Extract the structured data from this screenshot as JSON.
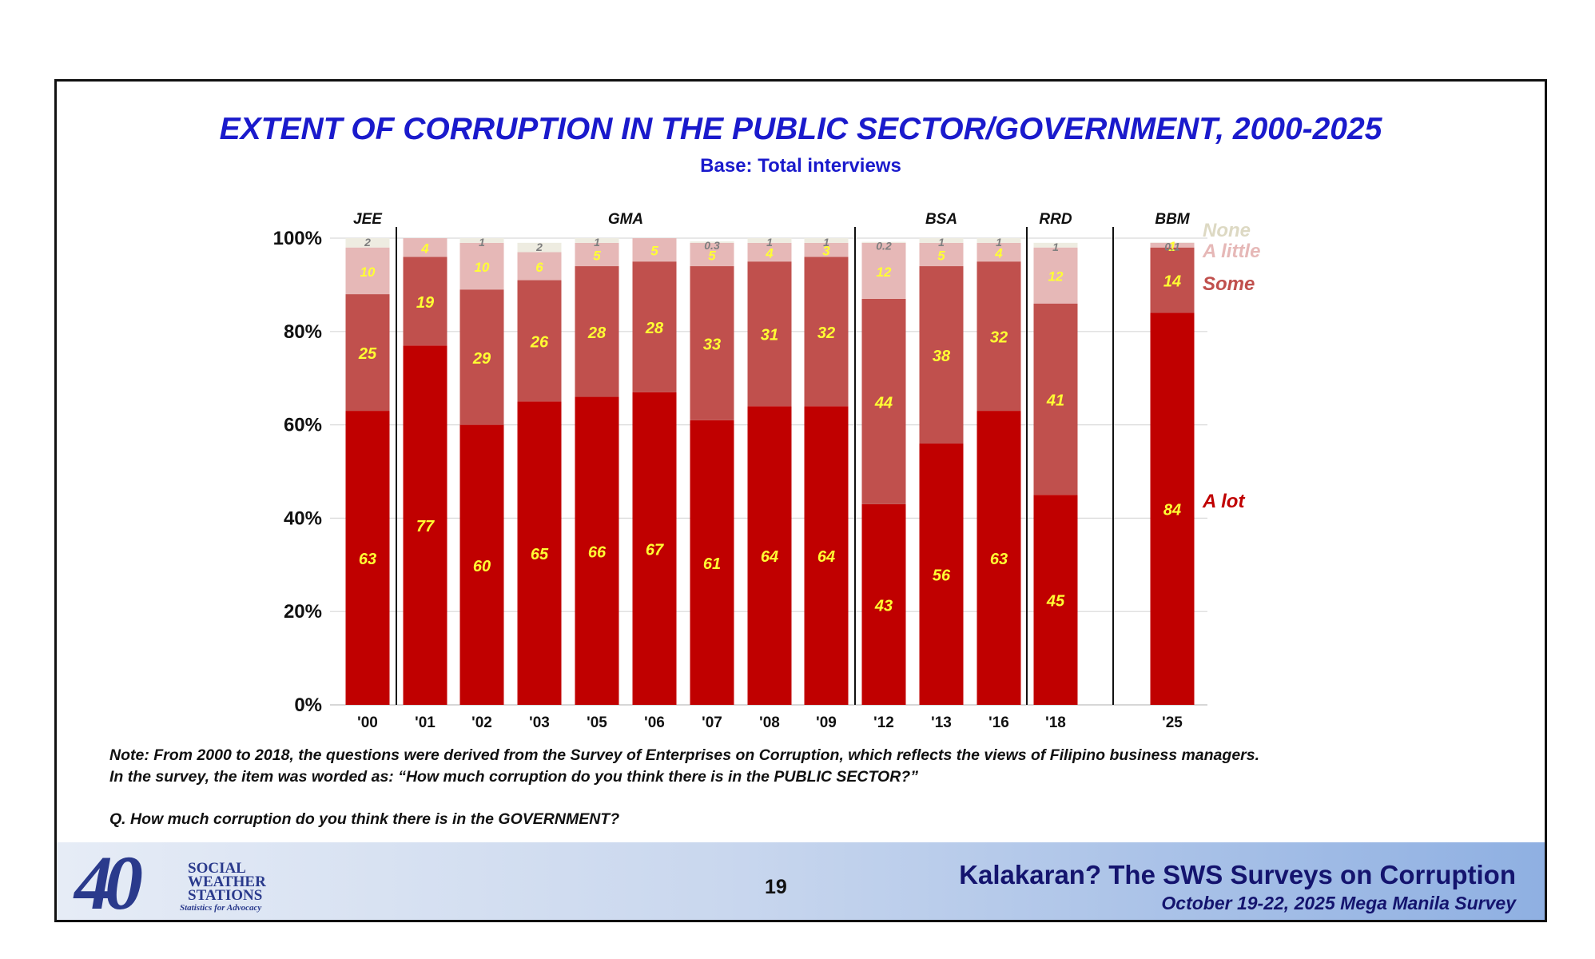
{
  "slide": {
    "title": "EXTENT OF CORRUPTION IN THE PUBLIC SECTOR/GOVERNMENT, 2000-2025",
    "subtitle": "Base: Total interviews",
    "note_line1": "Note: From 2000 to 2018, the questions were derived from the Survey of Enterprises on Corruption, which reflects the views of Filipino business managers.",
    "note_line2": "In the survey, the item was worded as: “How much corruption do you think there is in the PUBLIC SECTOR?”",
    "question": "Q. How much corruption do you think there is in the GOVERNMENT?",
    "page_number": "19",
    "footer_title": "Kalakaran? The SWS Surveys on Corruption",
    "footer_subtitle": "October 19-22, 2025 Mega Manila Survey",
    "logo": {
      "number": "40",
      "line1": "SOCIAL",
      "line2": "WEATHER",
      "line3": "STATIONS",
      "tagline": "Statistics for Advocacy"
    }
  },
  "chart_data": {
    "type": "bar",
    "stacked": true,
    "categories": [
      "'00",
      "'01",
      "'02",
      "'03",
      "'05",
      "'06",
      "'07",
      "'08",
      "'09",
      "'12",
      "'13",
      "'16",
      "'18",
      "'25"
    ],
    "ylim": [
      0,
      100
    ],
    "yticks": [
      "0%",
      "20%",
      "40%",
      "60%",
      "80%",
      "100%"
    ],
    "grid": true,
    "series": [
      {
        "name": "A lot",
        "color": "#c00000",
        "labelcolor": "#ffff33",
        "values": [
          63,
          77,
          60,
          65,
          66,
          67,
          61,
          64,
          64,
          43,
          56,
          63,
          45,
          84
        ]
      },
      {
        "name": "Some",
        "color": "#c0504d",
        "labelcolor": "#ffff33",
        "values": [
          25,
          19,
          29,
          26,
          28,
          28,
          33,
          31,
          32,
          44,
          38,
          32,
          41,
          14
        ]
      },
      {
        "name": "A little",
        "color": "#e6b8b7",
        "labelcolor": "#ffff33",
        "values": [
          10,
          4,
          10,
          6,
          5,
          5,
          5,
          4,
          3,
          12,
          5,
          4,
          12,
          1
        ]
      },
      {
        "name": "None",
        "color": "#eeece1",
        "labelcolor": "#7f7f7f",
        "values": [
          2,
          null,
          1,
          2,
          1,
          null,
          0.3,
          1,
          1,
          0.2,
          1,
          1,
          1,
          0.1
        ]
      }
    ],
    "administrations": [
      {
        "label": "JEE",
        "first": 0,
        "last": 0
      },
      {
        "label": "GMA",
        "first": 1,
        "last": 8
      },
      {
        "label": "BSA",
        "first": 9,
        "last": 11
      },
      {
        "label": "RRD",
        "first": 12,
        "last": 12
      },
      {
        "label": "BBM",
        "first": 13,
        "last": 13
      }
    ],
    "legend_placement": "right"
  }
}
